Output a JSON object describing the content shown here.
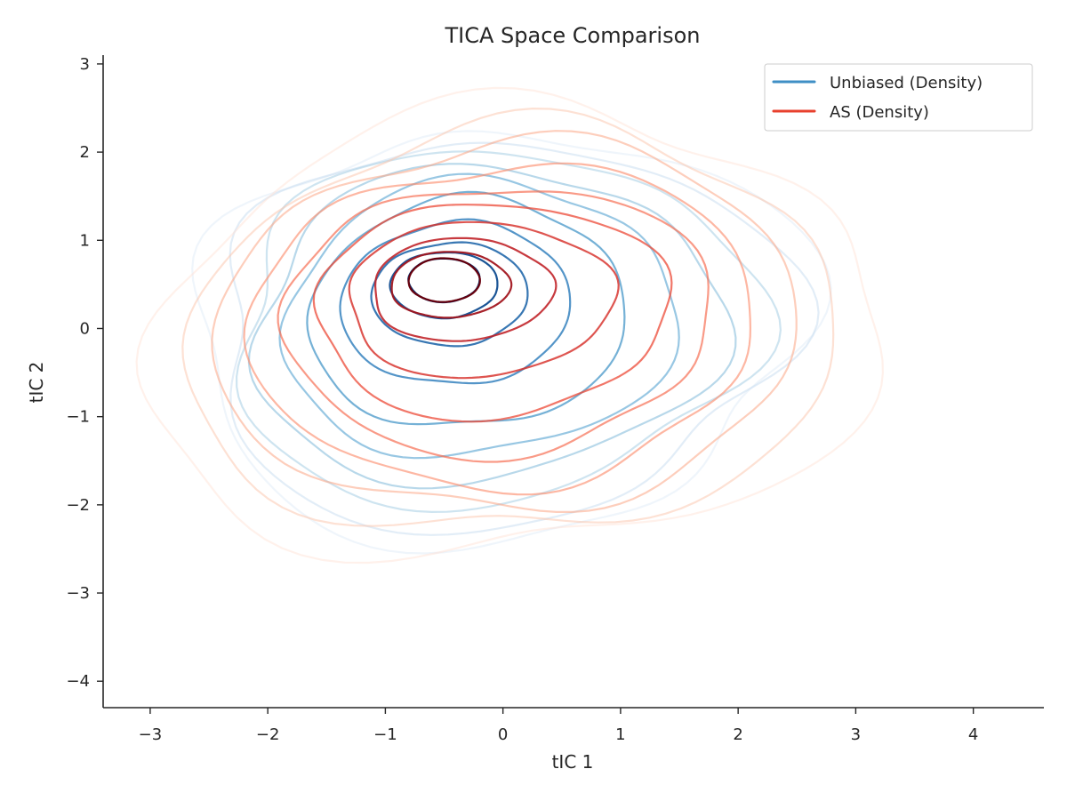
{
  "chart_data": {
    "type": "contour",
    "title": "TICA Space Comparison",
    "xlabel": "tIC 1",
    "ylabel": "tIC 2",
    "xlim": [
      -3.4,
      4.6
    ],
    "ylim": [
      -4.3,
      3.1
    ],
    "x_ticks": [
      -3,
      -2,
      -1,
      0,
      1,
      2,
      3,
      4
    ],
    "y_ticks": [
      -4,
      -3,
      -2,
      -1,
      0,
      1,
      2,
      3
    ],
    "x_tick_labels": [
      "−3",
      "−2",
      "−1",
      "0",
      "1",
      "2",
      "3",
      "4"
    ],
    "y_tick_labels": [
      "−4",
      "−3",
      "−2",
      "−1",
      "0",
      "1",
      "2",
      "3"
    ],
    "grid": false,
    "legend_position": "top-right",
    "series": [
      {
        "name": "Unbiased (Density)",
        "legend_color": "#3f8fc5",
        "colormap": "Blues",
        "level_count": 10,
        "peak": [
          -0.5,
          0.55
        ],
        "levels": [
          {
            "cx": -0.05,
            "cy": 0.05,
            "rx": 2.45,
            "ry": 2.7
          },
          {
            "cx": -0.05,
            "cy": 0.05,
            "rx": 2.3,
            "ry": 2.55
          },
          {
            "cx": -0.1,
            "cy": 0.1,
            "rx": 2.1,
            "ry": 2.35
          },
          {
            "cx": -0.15,
            "cy": 0.1,
            "rx": 1.9,
            "ry": 2.1
          },
          {
            "cx": -0.2,
            "cy": 0.15,
            "rx": 1.6,
            "ry": 1.85
          },
          {
            "cx": -0.3,
            "cy": 0.2,
            "rx": 1.3,
            "ry": 1.55
          },
          {
            "cx": -0.4,
            "cy": 0.3,
            "rx": 0.95,
            "ry": 1.1
          },
          {
            "cx": -0.45,
            "cy": 0.4,
            "rx": 0.65,
            "ry": 0.7
          },
          {
            "cx": -0.5,
            "cy": 0.5,
            "rx": 0.45,
            "ry": 0.45
          },
          {
            "cx": -0.5,
            "cy": 0.55,
            "rx": 0.3,
            "ry": 0.3
          }
        ]
      },
      {
        "name": "AS (Density)",
        "legend_color": "#e8402d",
        "colormap": "Reds",
        "level_count": 10,
        "peak": [
          -0.5,
          0.55
        ],
        "levels": [
          {
            "cx": 0.1,
            "cy": 0.05,
            "rx": 2.9,
            "ry": 2.95
          },
          {
            "cx": 0.1,
            "cy": 0.05,
            "rx": 2.6,
            "ry": 2.7
          },
          {
            "cx": 0.05,
            "cy": 0.1,
            "rx": 2.35,
            "ry": 2.45
          },
          {
            "cx": 0.0,
            "cy": 0.1,
            "rx": 2.05,
            "ry": 2.15
          },
          {
            "cx": -0.05,
            "cy": 0.15,
            "rx": 1.75,
            "ry": 1.8
          },
          {
            "cx": -0.1,
            "cy": 0.25,
            "rx": 1.45,
            "ry": 1.45
          },
          {
            "cx": -0.2,
            "cy": 0.35,
            "rx": 1.1,
            "ry": 1.05
          },
          {
            "cx": -0.35,
            "cy": 0.45,
            "rx": 0.75,
            "ry": 0.7
          },
          {
            "cx": -0.45,
            "cy": 0.5,
            "rx": 0.5,
            "ry": 0.45
          },
          {
            "cx": -0.5,
            "cy": 0.55,
            "rx": 0.3,
            "ry": 0.3
          }
        ]
      }
    ]
  }
}
